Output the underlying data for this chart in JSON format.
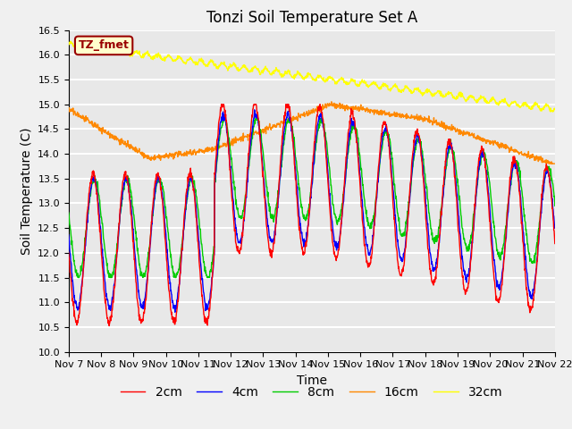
{
  "title": "Tonzi Soil Temperature Set A",
  "xlabel": "Time",
  "ylabel": "Soil Temperature (C)",
  "ylim": [
    10.0,
    16.5
  ],
  "yticks": [
    10.0,
    10.5,
    11.0,
    11.5,
    12.0,
    12.5,
    13.0,
    13.5,
    14.0,
    14.5,
    15.0,
    15.5,
    16.0,
    16.5
  ],
  "label_box_text": "TZ_fmet",
  "label_box_bg": "#ffffcc",
  "label_box_fg": "#990000",
  "series_colors": {
    "2cm": "#ff0000",
    "4cm": "#0000ff",
    "8cm": "#00cc00",
    "16cm": "#ff8800",
    "32cm": "#ffff00"
  },
  "legend_labels": [
    "2cm",
    "4cm",
    "8cm",
    "16cm",
    "32cm"
  ],
  "n_points": 1440,
  "x_start": 7,
  "x_end": 22,
  "xtick_positions": [
    7,
    8,
    9,
    10,
    11,
    12,
    13,
    14,
    15,
    16,
    17,
    18,
    19,
    20,
    21,
    22
  ],
  "xtick_labels": [
    "Nov 7",
    "Nov 8",
    "Nov 9",
    "Nov 10",
    "Nov 11",
    "Nov 12",
    "Nov 13",
    "Nov 14",
    "Nov 15",
    "Nov 16",
    "Nov 17",
    "Nov 18",
    "Nov 19",
    "Nov 20",
    "Nov 21",
    "Nov 22"
  ],
  "fig_bg_color": "#f0f0f0",
  "plot_bg_color": "#e8e8e8",
  "grid_color": "#ffffff",
  "title_fontsize": 12,
  "axis_label_fontsize": 10,
  "tick_fontsize": 8,
  "legend_fontsize": 10
}
